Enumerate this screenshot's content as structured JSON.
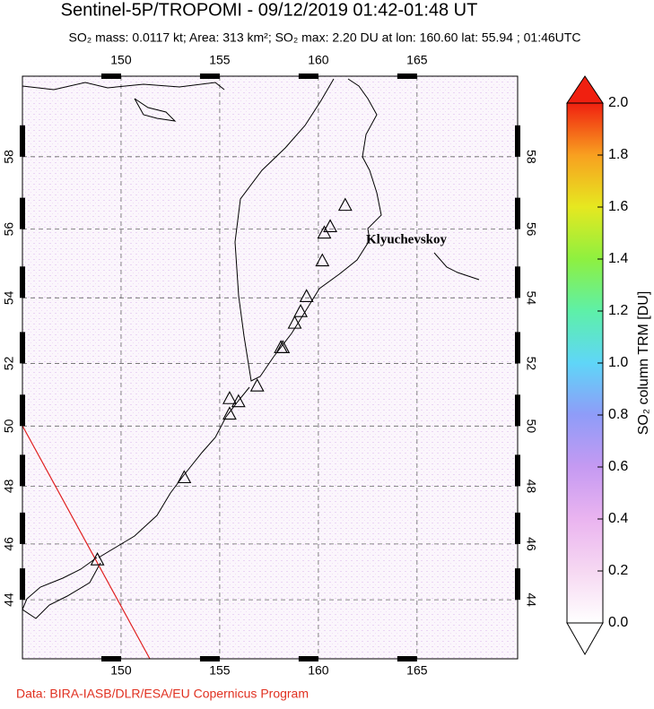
{
  "map": {
    "title": "Sentinel-5P/TROPOMI - 09/12/2019 01:42-01:48 UT",
    "subtitle": "SO₂ mass: 0.0117 kt; Area: 313 km²; SO₂ max: 2.20 DU at lon: 160.60 lat: 55.94 ; 01:46UTC",
    "lonlim": [
      145,
      170.1
    ],
    "latlim": [
      41.85,
      60.1
    ],
    "lon_ticks": [
      150,
      155,
      160,
      165
    ],
    "lat_ticks": [
      44,
      46,
      48,
      50,
      52,
      54,
      56,
      58
    ],
    "volcano_label": "Klyuchevskoy",
    "volcanoes": [
      {
        "lon": 161.36,
        "lat": 56.68
      },
      {
        "lon": 160.6,
        "lat": 56.08
      },
      {
        "lon": 160.3,
        "lat": 55.9
      },
      {
        "lon": 160.2,
        "lat": 55.1
      },
      {
        "lon": 159.4,
        "lat": 54.05
      },
      {
        "lon": 159.1,
        "lat": 53.6
      },
      {
        "lon": 158.8,
        "lat": 53.25
      },
      {
        "lon": 158.1,
        "lat": 52.5
      },
      {
        "lon": 158.2,
        "lat": 52.5
      },
      {
        "lon": 156.9,
        "lat": 51.3
      },
      {
        "lon": 155.95,
        "lat": 50.8
      },
      {
        "lon": 155.5,
        "lat": 50.9
      },
      {
        "lon": 155.5,
        "lat": 50.4
      },
      {
        "lon": 153.2,
        "lat": 48.3
      },
      {
        "lon": 148.8,
        "lat": 45.45
      }
    ],
    "colorbar": {
      "label": "SO₂ column TRM [DU]",
      "lim": [
        0,
        2
      ],
      "ticks": [
        {
          "value": 0,
          "label": "0.0"
        },
        {
          "value": 0.2,
          "label": "0.2"
        },
        {
          "value": 0.4,
          "label": "0.4"
        },
        {
          "value": 0.6,
          "label": "0.6"
        },
        {
          "value": 0.8,
          "label": "0.8"
        },
        {
          "value": 1,
          "label": "1.0"
        },
        {
          "value": 1.2,
          "label": "1.2"
        },
        {
          "value": 1.4,
          "label": "1.4"
        },
        {
          "value": 1.6,
          "label": "1.6"
        },
        {
          "value": 1.8,
          "label": "1.8"
        },
        {
          "value": 2,
          "label": "2.0"
        }
      ],
      "colors": [
        "#ffffff",
        "#f6d8f2",
        "#eab4f0",
        "#c59af2",
        "#8f9cf8",
        "#5fd6f8",
        "#5ef0a8",
        "#8ef040",
        "#e6e820",
        "#f8a020",
        "#f02010"
      ]
    },
    "credit": "Data: BIRA-IASB/DLR/ESA/EU Copernicus Program"
  }
}
